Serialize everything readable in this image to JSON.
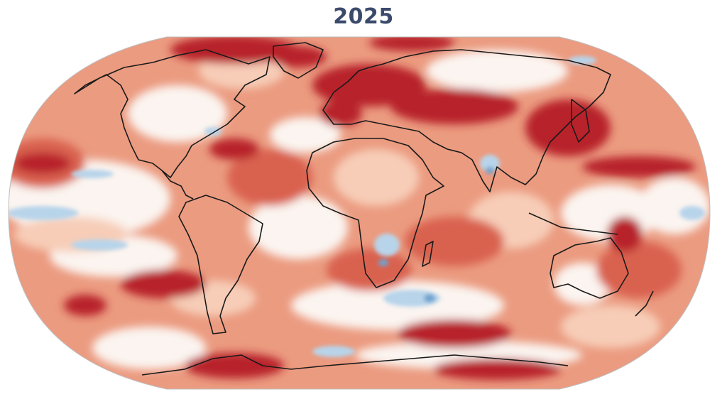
{
  "title": "2025",
  "palette": {
    "dark_red": "#b8202c",
    "red": "#d9624f",
    "salmon": "#eb9b80",
    "light_salmon": "#f7cdb8",
    "white": "#fbf4f0",
    "light_blue": "#b8d4ea",
    "blue": "#6fa3cf",
    "coast": "#1a1a1a",
    "outline": "#bfbfbf"
  }
}
